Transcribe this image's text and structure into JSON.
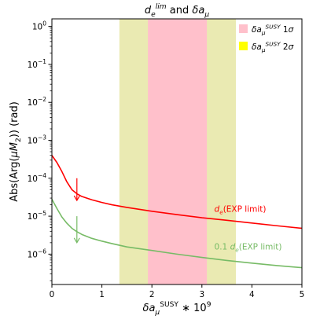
{
  "chart_data": {
    "type": "line",
    "title": {
      "parts": [
        {
          "t": "d",
          "i": true
        },
        {
          "t": "e",
          "sub": true,
          "i": true
        },
        {
          "t": "lim",
          "sup": true,
          "i": true
        },
        {
          "t": " and "
        },
        {
          "t": "δa",
          "i": true
        },
        {
          "t": "μ",
          "sub": true,
          "i": true
        }
      ]
    },
    "xlabel": {
      "parts": [
        {
          "t": "δa",
          "i": true
        },
        {
          "t": "μ",
          "sub": true,
          "i": true
        },
        {
          "t": "SUSY",
          "sup": true
        },
        {
          "t": " ∗ 10"
        },
        {
          "t": "9",
          "sup": true
        }
      ]
    },
    "ylabel": {
      "parts": [
        {
          "t": "Abs(Arg("
        },
        {
          "t": "μM",
          "i": true
        },
        {
          "t": "2",
          "sub": true
        },
        {
          "t": ")) (rad)"
        }
      ]
    },
    "xlim": [
      0,
      5
    ],
    "ylim_log10": [
      -6.8,
      0.2
    ],
    "yscale": "log",
    "x_ticks": [
      0,
      1,
      2,
      3,
      4,
      5
    ],
    "x_tick_labels": [
      "0",
      "1",
      "2",
      "3",
      "4",
      "5"
    ],
    "y_ticks_log10": [
      0,
      -1,
      -2,
      -3,
      -4,
      -5,
      -6
    ],
    "y_tick_labels": [
      {
        "base": "10",
        "exp": "0"
      },
      {
        "base": "10",
        "exp": "−1"
      },
      {
        "base": "10",
        "exp": "−2"
      },
      {
        "base": "10",
        "exp": "−3"
      },
      {
        "base": "10",
        "exp": "−4"
      },
      {
        "base": "10",
        "exp": "−5"
      },
      {
        "base": "10",
        "exp": "−6"
      }
    ],
    "bands": [
      {
        "name": "2sigma",
        "x0": 1.35,
        "x1": 3.68,
        "color": "#eaea b2"
      },
      {
        "name": "1sigma",
        "x0": 1.92,
        "x1": 3.1,
        "color": "#ffc0cb"
      }
    ],
    "legend": {
      "placement": "top-right",
      "entries": [
        {
          "color": "#ffc0cb",
          "parts": [
            {
              "t": "δa",
              "i": true
            },
            {
              "t": "μ",
              "sub": true,
              "i": true
            },
            {
              "t": "SUSY",
              "sup": true,
              "i": true
            },
            {
              "t": " 1"
            },
            {
              "t": "σ",
              "i": true
            }
          ]
        },
        {
          "color": "#ffff00",
          "parts": [
            {
              "t": "δa",
              "i": true
            },
            {
              "t": "μ",
              "sub": true,
              "i": true
            },
            {
              "t": "SUSY",
              "sup": true,
              "i": true
            },
            {
              "t": " 2"
            },
            {
              "t": "σ",
              "i": true
            }
          ]
        }
      ]
    },
    "series": [
      {
        "color": "#ff0000",
        "points": [
          [
            0.0,
            0.0004
          ],
          [
            0.1,
            0.00026
          ],
          [
            0.2,
            0.00015
          ],
          [
            0.3,
            8e-05
          ],
          [
            0.4,
            5e-05
          ],
          [
            0.5,
            3.9e-05
          ],
          [
            0.6,
            3.3e-05
          ],
          [
            0.8,
            2.7e-05
          ],
          [
            1.0,
            2.3e-05
          ],
          [
            1.2,
            2e-05
          ],
          [
            1.5,
            1.7e-05
          ],
          [
            2.0,
            1.35e-05
          ],
          [
            2.5,
            1.1e-05
          ],
          [
            3.0,
            9.1e-06
          ],
          [
            3.5,
            7.8e-06
          ],
          [
            4.0,
            6.6e-06
          ],
          [
            4.5,
            5.6e-06
          ],
          [
            5.0,
            4.8e-06
          ]
        ]
      },
      {
        "color": "#77bb66",
        "points": [
          [
            0.0,
            2.8e-05
          ],
          [
            0.1,
            1.6e-05
          ],
          [
            0.2,
            9.5e-06
          ],
          [
            0.3,
            6.5e-06
          ],
          [
            0.4,
            4.8e-06
          ],
          [
            0.5,
            3.9e-06
          ],
          [
            0.6,
            3.3e-06
          ],
          [
            0.8,
            2.6e-06
          ],
          [
            1.0,
            2.2e-06
          ],
          [
            1.2,
            1.9e-06
          ],
          [
            1.5,
            1.55e-06
          ],
          [
            2.0,
            1.25e-06
          ],
          [
            2.5,
            1e-06
          ],
          [
            3.0,
            8.2e-07
          ],
          [
            3.5,
            6.8e-07
          ],
          [
            4.0,
            5.8e-07
          ],
          [
            4.5,
            5e-07
          ],
          [
            5.0,
            4.4e-07
          ]
        ]
      }
    ],
    "arrows": [
      {
        "x": 0.5,
        "y_from": 0.0001,
        "y_to": 2.6e-05,
        "color": "#ff0000"
      },
      {
        "x": 0.5,
        "y_from": 1e-05,
        "y_to": 2e-06,
        "color": "#77bb66"
      }
    ],
    "annotations": [
      {
        "x": 3.2,
        "y": 1.2e-05,
        "color": "#ff0000",
        "parts": [
          {
            "t": "d",
            "i": true
          },
          {
            "t": "e",
            "sub": true,
            "i": true
          },
          {
            "t": "(EXP limit)"
          }
        ]
      },
      {
        "x": 3.2,
        "y": 1.2e-06,
        "color": "#77bb66",
        "parts": [
          {
            "t": "0.1 "
          },
          {
            "t": "d",
            "i": true
          },
          {
            "t": "e",
            "sub": true,
            "i": true
          },
          {
            "t": "(EXP limit)"
          }
        ]
      }
    ]
  }
}
